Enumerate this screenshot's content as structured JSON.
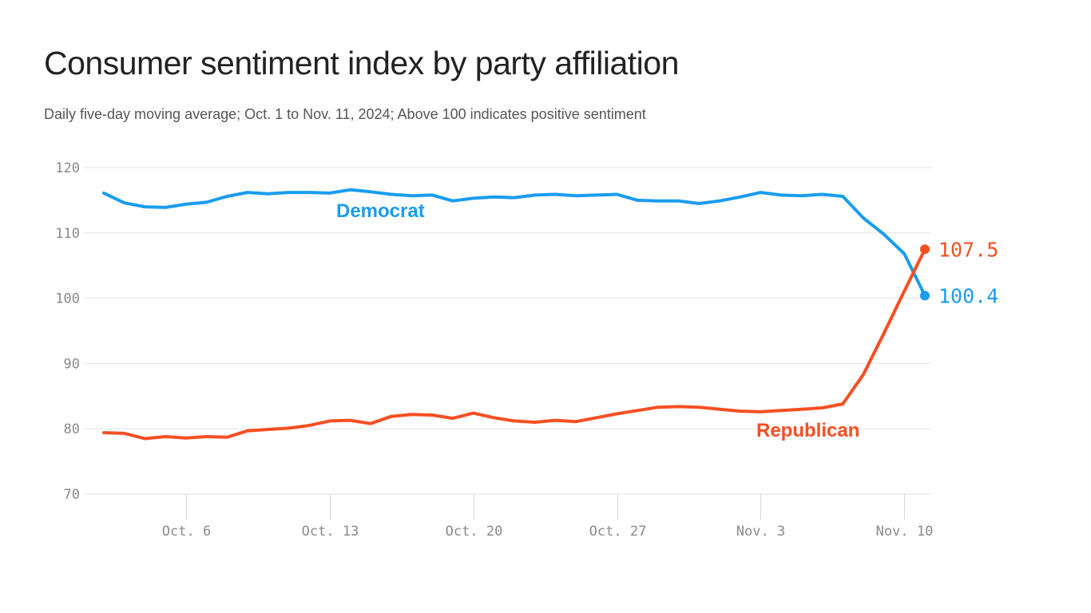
{
  "header": {
    "title": "Consumer sentiment index by party affiliation",
    "subtitle": "Daily five-day moving average; Oct. 1 to Nov. 11, 2024; Above 100 indicates positive sentiment"
  },
  "colors": {
    "democrat": "#1a9cf0",
    "republican": "#f74f22",
    "grid": "#e2e2e2",
    "axis_text": "#8a8a8a"
  },
  "chart_data": {
    "type": "line",
    "title": "Consumer sentiment index by party affiliation",
    "subtitle": "Daily five-day moving average; Oct. 1 to Nov. 11, 2024; Above 100 indicates positive sentiment",
    "xlabel": "",
    "ylabel": "",
    "x_range": [
      "2024-10-02",
      "2024-11-11"
    ],
    "ylim": [
      70,
      120
    ],
    "y_ticks": [
      70,
      80,
      90,
      100,
      110,
      120
    ],
    "y_tick_labels": [
      "70",
      "80",
      "90",
      "100",
      "110",
      "120"
    ],
    "x_ticks": [
      {
        "date": "2024-10-06",
        "label": "Oct. 6"
      },
      {
        "date": "2024-10-13",
        "label": "Oct. 13"
      },
      {
        "date": "2024-10-20",
        "label": "Oct. 20"
      },
      {
        "date": "2024-10-27",
        "label": "Oct. 27"
      },
      {
        "date": "2024-11-03",
        "label": "Nov. 3"
      },
      {
        "date": "2024-11-10",
        "label": "Nov. 10"
      }
    ],
    "grid": true,
    "legend": "none (direct labels)",
    "x": [
      "2024-10-02",
      "2024-10-03",
      "2024-10-04",
      "2024-10-05",
      "2024-10-06",
      "2024-10-07",
      "2024-10-08",
      "2024-10-09",
      "2024-10-10",
      "2024-10-11",
      "2024-10-12",
      "2024-10-13",
      "2024-10-14",
      "2024-10-15",
      "2024-10-16",
      "2024-10-17",
      "2024-10-18",
      "2024-10-19",
      "2024-10-20",
      "2024-10-21",
      "2024-10-22",
      "2024-10-23",
      "2024-10-24",
      "2024-10-25",
      "2024-10-26",
      "2024-10-27",
      "2024-10-28",
      "2024-10-29",
      "2024-10-30",
      "2024-10-31",
      "2024-11-01",
      "2024-11-02",
      "2024-11-03",
      "2024-11-04",
      "2024-11-05",
      "2024-11-06",
      "2024-11-07",
      "2024-11-08",
      "2024-11-09",
      "2024-11-10",
      "2024-11-11"
    ],
    "series": [
      {
        "name": "Democrat",
        "color": "#1a9cf0",
        "end_label": "100.4",
        "values": [
          116.1,
          114.6,
          114.0,
          113.9,
          114.4,
          114.7,
          115.6,
          116.2,
          116.0,
          116.2,
          116.2,
          116.1,
          116.6,
          116.3,
          115.9,
          115.7,
          115.8,
          114.9,
          115.3,
          115.5,
          115.4,
          115.8,
          115.9,
          115.7,
          115.8,
          115.9,
          115.0,
          114.9,
          114.9,
          114.5,
          114.9,
          115.5,
          116.2,
          115.8,
          115.7,
          115.9,
          115.6,
          112.3,
          109.8,
          106.8,
          100.4
        ]
      },
      {
        "name": "Republican",
        "color": "#f74f22",
        "end_label": "107.5",
        "values": [
          79.4,
          79.3,
          78.5,
          78.8,
          78.6,
          78.8,
          78.7,
          79.7,
          79.9,
          80.1,
          80.5,
          81.2,
          81.3,
          80.8,
          81.9,
          82.2,
          82.1,
          81.6,
          82.4,
          81.7,
          81.2,
          81.0,
          81.3,
          81.1,
          81.7,
          82.3,
          82.8,
          83.3,
          83.4,
          83.3,
          83.0,
          82.7,
          82.6,
          82.8,
          83.0,
          83.2,
          83.8,
          88.3,
          94.6,
          101.1,
          107.5
        ]
      }
    ]
  }
}
